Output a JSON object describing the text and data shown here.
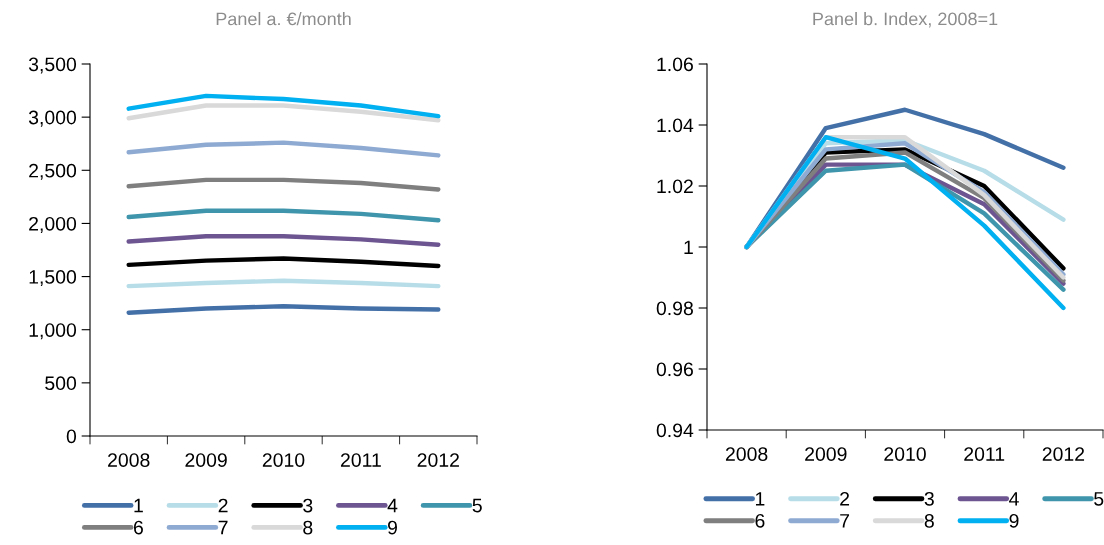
{
  "chart_data": [
    {
      "type": "line",
      "subtitle": "Panel a. €/month",
      "categories": [
        "2008",
        "2009",
        "2010",
        "2011",
        "2012"
      ],
      "ylim": [
        0,
        3500
      ],
      "yticks": [
        0,
        500,
        {
          "value": 1000,
          "label": "1,000"
        },
        {
          "value": 1500,
          "label": "1,500"
        },
        {
          "value": 2000,
          "label": "2,000"
        },
        {
          "value": 2500,
          "label": "2,500"
        },
        {
          "value": 3000,
          "label": "3,000"
        },
        {
          "value": 3500,
          "label": "3,500"
        }
      ],
      "grid": false,
      "legend": "bottom",
      "marker": "none",
      "line_style": "solid",
      "series": [
        {
          "name": "1",
          "color": "#4470a8",
          "values": [
            1160,
            1200,
            1220,
            1200,
            1190
          ]
        },
        {
          "name": "2",
          "color": "#b7dde8",
          "values": [
            1410,
            1440,
            1460,
            1440,
            1410
          ]
        },
        {
          "name": "3",
          "color": "#000000",
          "values": [
            1610,
            1650,
            1670,
            1640,
            1600
          ]
        },
        {
          "name": "4",
          "color": "#6c5590",
          "values": [
            1830,
            1880,
            1880,
            1850,
            1800
          ]
        },
        {
          "name": "5",
          "color": "#3f95ab",
          "values": [
            2060,
            2120,
            2120,
            2090,
            2030
          ]
        },
        {
          "name": "6",
          "color": "#7f7f7f",
          "values": [
            2350,
            2410,
            2410,
            2380,
            2320
          ]
        },
        {
          "name": "7",
          "color": "#8eaad2",
          "values": [
            2670,
            2740,
            2760,
            2710,
            2640
          ]
        },
        {
          "name": "8",
          "color": "#d9d9d9",
          "values": [
            2990,
            3110,
            3110,
            3050,
            2970
          ]
        },
        {
          "name": "9",
          "color": "#00b0f0",
          "values": [
            3080,
            3200,
            3170,
            3110,
            3010
          ]
        }
      ]
    },
    {
      "type": "line",
      "subtitle": "Panel b. Index, 2008=1",
      "categories": [
        "2008",
        "2009",
        "2010",
        "2011",
        "2012"
      ],
      "ylim": [
        0.94,
        1.06
      ],
      "yticks": [
        0.94,
        0.96,
        0.98,
        {
          "value": 1,
          "label": "1"
        },
        1.02,
        1.04,
        1.06
      ],
      "grid": false,
      "legend": "bottom",
      "marker": "none",
      "line_style": "solid",
      "series": [
        {
          "name": "1",
          "color": "#4470a8",
          "values": [
            1,
            1.039,
            1.045,
            1.037,
            1.026
          ]
        },
        {
          "name": "2",
          "color": "#b7dde8",
          "values": [
            1,
            1.034,
            1.035,
            1.025,
            1.009
          ]
        },
        {
          "name": "3",
          "color": "#000000",
          "values": [
            1,
            1.031,
            1.032,
            1.02,
            0.993
          ]
        },
        {
          "name": "4",
          "color": "#6c5590",
          "values": [
            1,
            1.027,
            1.027,
            1.014,
            0.988
          ]
        },
        {
          "name": "5",
          "color": "#3f95ab",
          "values": [
            1,
            1.025,
            1.027,
            1.011,
            0.986
          ]
        },
        {
          "name": "6",
          "color": "#7f7f7f",
          "values": [
            1,
            1.029,
            1.031,
            1.016,
            0.989
          ]
        },
        {
          "name": "7",
          "color": "#8eaad2",
          "values": [
            1,
            1.032,
            1.034,
            1.018,
            0.991
          ]
        },
        {
          "name": "8",
          "color": "#d9d9d9",
          "values": [
            1,
            1.036,
            1.036,
            1.017,
            0.99
          ]
        },
        {
          "name": "9",
          "color": "#00b0f0",
          "values": [
            1,
            1.036,
            1.029,
            1.007,
            0.98
          ]
        }
      ]
    }
  ]
}
